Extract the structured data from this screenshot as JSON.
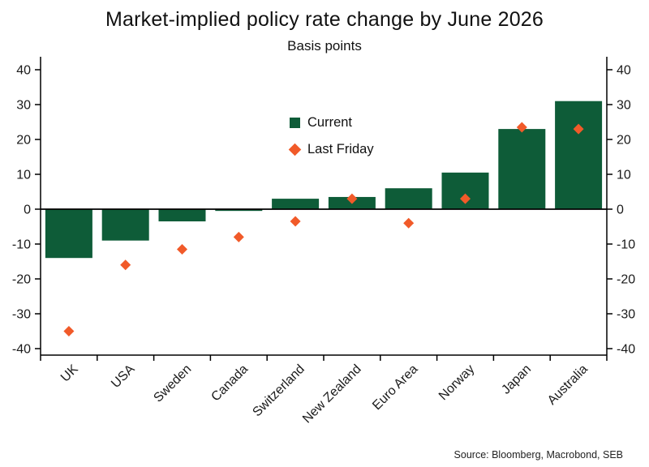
{
  "header": {
    "title": "Market-implied policy rate change by June 2026",
    "subtitle": "Basis points"
  },
  "source": "Source: Bloomberg, Macrobond, SEB",
  "chart_data": {
    "type": "bar",
    "title": "Market-implied policy rate change by June 2026",
    "subtitle": "Basis points",
    "categories": [
      "UK",
      "USA",
      "Sweden",
      "Canada",
      "Switzerland",
      "New Zealand",
      "Euro Area",
      "Norway",
      "Japan",
      "Australia"
    ],
    "series": [
      {
        "name": "Current",
        "type": "bar",
        "color": "#0e5c38",
        "values": [
          -14,
          -9,
          -3.5,
          -0.5,
          3,
          3.5,
          6,
          10.5,
          23,
          31
        ]
      },
      {
        "name": "Last Friday",
        "type": "scatter-diamond",
        "color": "#f15a29",
        "values": [
          -35,
          -16,
          -11.5,
          -8,
          -3.5,
          3,
          -4,
          3,
          23.5,
          23
        ]
      }
    ],
    "ylim": [
      -43,
      43
    ],
    "yticks": [
      -40,
      -30,
      -20,
      -10,
      0,
      10,
      20,
      30,
      40
    ],
    "grid": false,
    "legend_position": "upper-center-inside",
    "axis_color": "#000000",
    "text_color": "#1a1a1a",
    "xlabel": "",
    "ylabel": ""
  }
}
